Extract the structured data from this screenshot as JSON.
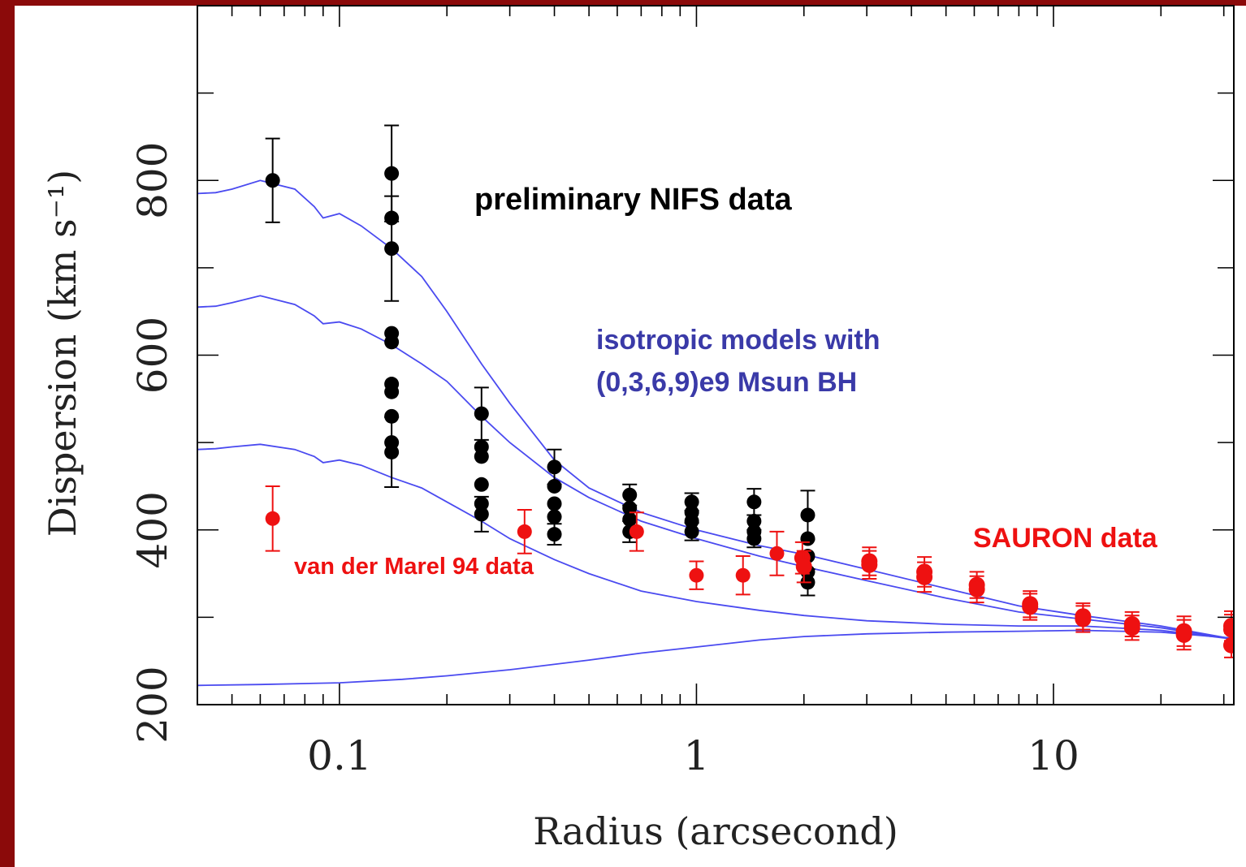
{
  "chart_data": {
    "type": "scatter",
    "xscale": "log",
    "xlim": [
      0.04,
      32
    ],
    "ylim": [
      200,
      1000
    ],
    "xlabel": "Radius (arcsecond)",
    "ylabel": "Dispersion (km s⁻¹)",
    "x_ticks": [
      {
        "value": 0.1,
        "label": "0.1"
      },
      {
        "value": 1,
        "label": "1"
      },
      {
        "value": 10,
        "label": "10"
      }
    ],
    "y_ticks": [
      {
        "value": 200,
        "label": "200"
      },
      {
        "value": 400,
        "label": "400"
      },
      {
        "value": 600,
        "label": "600"
      },
      {
        "value": 800,
        "label": "800"
      }
    ],
    "annotations": {
      "nifs": "preliminary NIFS data",
      "models_line1": "isotropic models with",
      "models_line2": "(0,3,6,9)e9 Msun BH",
      "sauron": "SAURON data",
      "vdm": "van der Marel 94 data"
    },
    "colors": {
      "nifs": "#000000",
      "models": "#4a4af0",
      "red_data": "#ee1111",
      "annotation_blue": "#3a3aa8",
      "frame": "#8b0a0a"
    },
    "series": [
      {
        "key": "model_9e9",
        "style": "line",
        "x": [
          0.04,
          0.045,
          0.05,
          0.06,
          0.075,
          0.085,
          0.09,
          0.1,
          0.115,
          0.14,
          0.17,
          0.2,
          0.25,
          0.3,
          0.4,
          0.5,
          0.7,
          1,
          1.5,
          2,
          3,
          5,
          8,
          12,
          20,
          32
        ],
        "y": [
          785,
          786,
          790,
          800,
          790,
          770,
          757,
          762,
          748,
          722,
          690,
          650,
          590,
          545,
          480,
          448,
          420,
          400,
          382,
          372,
          355,
          333,
          313,
          302,
          290,
          275
        ]
      },
      {
        "key": "model_6e9",
        "style": "line",
        "x": [
          0.04,
          0.045,
          0.05,
          0.06,
          0.075,
          0.085,
          0.09,
          0.1,
          0.115,
          0.14,
          0.17,
          0.2,
          0.25,
          0.3,
          0.4,
          0.5,
          0.7,
          1,
          1.5,
          2,
          3,
          5,
          8,
          12,
          20,
          32
        ],
        "y": [
          655,
          656,
          660,
          668,
          658,
          645,
          636,
          638,
          630,
          612,
          590,
          570,
          530,
          500,
          460,
          437,
          410,
          390,
          370,
          358,
          342,
          322,
          306,
          298,
          288,
          275
        ]
      },
      {
        "key": "model_3e9",
        "style": "line",
        "x": [
          0.04,
          0.045,
          0.05,
          0.06,
          0.075,
          0.085,
          0.09,
          0.1,
          0.115,
          0.14,
          0.17,
          0.2,
          0.25,
          0.3,
          0.4,
          0.5,
          0.7,
          1,
          1.5,
          2,
          3,
          5,
          8,
          12,
          20,
          32
        ],
        "y": [
          492,
          493,
          495,
          498,
          492,
          484,
          477,
          480,
          474,
          460,
          448,
          432,
          410,
          390,
          366,
          350,
          330,
          318,
          308,
          302,
          296,
          292,
          290,
          290,
          285,
          275
        ]
      },
      {
        "key": "model_0",
        "style": "line",
        "x": [
          0.04,
          0.06,
          0.1,
          0.15,
          0.2,
          0.3,
          0.5,
          0.7,
          1,
          1.5,
          2,
          3,
          5,
          8,
          12,
          20,
          32
        ],
        "y": [
          222,
          223,
          225,
          229,
          233,
          240,
          251,
          259,
          266,
          274,
          278,
          281,
          283,
          284,
          285,
          283,
          276
        ]
      },
      {
        "key": "nifs",
        "style": "points",
        "points": [
          {
            "x": 0.065,
            "y": 800,
            "e": 48
          },
          {
            "x": 0.14,
            "y": 808,
            "e": 55
          },
          {
            "x": 0.14,
            "y": 757
          },
          {
            "x": 0.14,
            "y": 722,
            "e": 60
          },
          {
            "x": 0.14,
            "y": 625
          },
          {
            "x": 0.14,
            "y": 615
          },
          {
            "x": 0.14,
            "y": 567
          },
          {
            "x": 0.14,
            "y": 558
          },
          {
            "x": 0.14,
            "y": 530
          },
          {
            "x": 0.14,
            "y": 500
          },
          {
            "x": 0.14,
            "y": 489,
            "e": 40
          },
          {
            "x": 0.25,
            "y": 533,
            "e": 30
          },
          {
            "x": 0.25,
            "y": 495
          },
          {
            "x": 0.25,
            "y": 484
          },
          {
            "x": 0.25,
            "y": 452
          },
          {
            "x": 0.25,
            "y": 430
          },
          {
            "x": 0.25,
            "y": 418,
            "e": 20
          },
          {
            "x": 0.4,
            "y": 472,
            "e": 20
          },
          {
            "x": 0.4,
            "y": 450
          },
          {
            "x": 0.4,
            "y": 430
          },
          {
            "x": 0.4,
            "y": 415
          },
          {
            "x": 0.4,
            "y": 395,
            "e": 12
          },
          {
            "x": 0.65,
            "y": 440,
            "e": 12
          },
          {
            "x": 0.65,
            "y": 425
          },
          {
            "x": 0.65,
            "y": 412
          },
          {
            "x": 0.65,
            "y": 398,
            "e": 12
          },
          {
            "x": 0.97,
            "y": 432,
            "e": 10
          },
          {
            "x": 0.97,
            "y": 420
          },
          {
            "x": 0.97,
            "y": 410
          },
          {
            "x": 0.97,
            "y": 398,
            "e": 10
          },
          {
            "x": 1.45,
            "y": 432,
            "e": 15
          },
          {
            "x": 1.45,
            "y": 410
          },
          {
            "x": 1.45,
            "y": 398
          },
          {
            "x": 1.45,
            "y": 390,
            "e": 10
          },
          {
            "x": 2.05,
            "y": 417,
            "e": 28
          },
          {
            "x": 2.05,
            "y": 390
          },
          {
            "x": 2.05,
            "y": 370
          },
          {
            "x": 2.05,
            "y": 352
          },
          {
            "x": 2.05,
            "y": 340,
            "e": 15
          }
        ]
      },
      {
        "key": "vdm",
        "style": "points",
        "points": [
          {
            "x": 0.065,
            "y": 413,
            "e": 37
          },
          {
            "x": 0.33,
            "y": 398,
            "e": 25
          },
          {
            "x": 0.68,
            "y": 398,
            "e": 22
          },
          {
            "x": 1.0,
            "y": 348,
            "e": 16
          },
          {
            "x": 1.35,
            "y": 348,
            "e": 22
          },
          {
            "x": 1.68,
            "y": 373,
            "e": 25
          }
        ]
      },
      {
        "key": "sauron",
        "style": "points",
        "points": [
          {
            "x": 1.98,
            "y": 368,
            "e": 18
          },
          {
            "x": 2.0,
            "y": 358,
            "e": 18
          },
          {
            "x": 3.05,
            "y": 364,
            "e": 16
          },
          {
            "x": 3.05,
            "y": 360,
            "e": 16
          },
          {
            "x": 4.35,
            "y": 352,
            "e": 17
          },
          {
            "x": 4.35,
            "y": 346,
            "e": 17
          },
          {
            "x": 6.1,
            "y": 337,
            "e": 15
          },
          {
            "x": 6.1,
            "y": 332,
            "e": 15
          },
          {
            "x": 8.6,
            "y": 315,
            "e": 15
          },
          {
            "x": 8.6,
            "y": 312,
            "e": 15
          },
          {
            "x": 12.1,
            "y": 301,
            "e": 15
          },
          {
            "x": 12.1,
            "y": 298,
            "e": 15
          },
          {
            "x": 16.6,
            "y": 292,
            "e": 14
          },
          {
            "x": 16.6,
            "y": 288,
            "e": 14
          },
          {
            "x": 23.2,
            "y": 284,
            "e": 17
          },
          {
            "x": 23.2,
            "y": 280,
            "e": 17
          },
          {
            "x": 31.5,
            "y": 290,
            "e": 17
          },
          {
            "x": 31.5,
            "y": 286,
            "e": 17
          },
          {
            "x": 31.5,
            "y": 268,
            "e": 14
          }
        ]
      }
    ]
  }
}
